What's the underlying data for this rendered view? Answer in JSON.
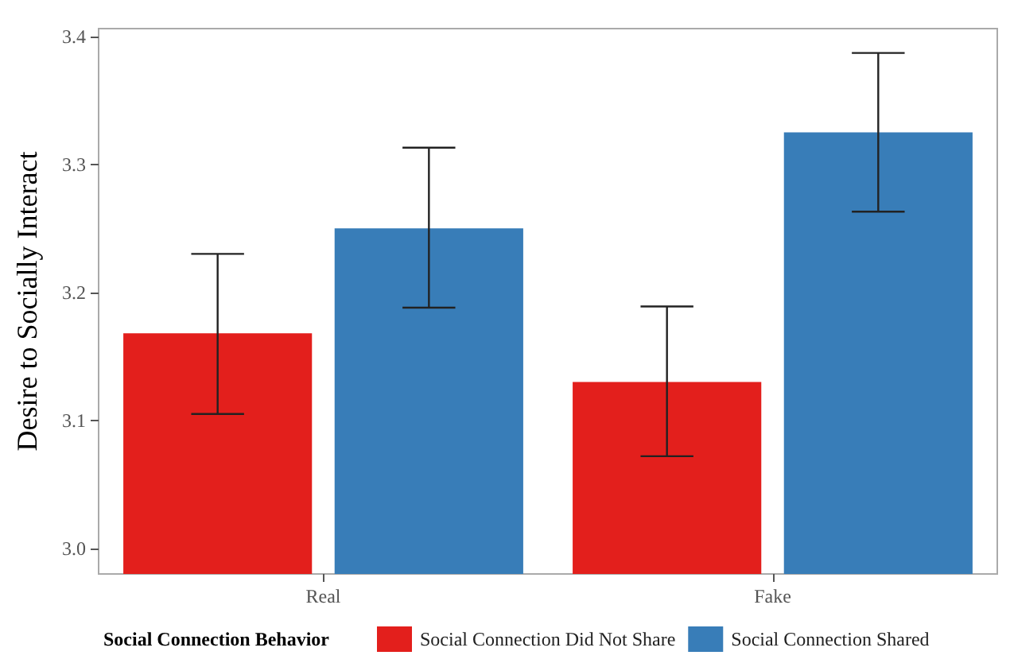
{
  "chart_data": {
    "type": "bar",
    "ylabel": "Desire to Socially Interact",
    "legend_title": "Social Connection Behavior",
    "categories": [
      "Real",
      "Fake"
    ],
    "series": [
      {
        "name": "Social Connection Did Not Share",
        "color": "#e31f1c",
        "values": [
          3.168,
          3.13
        ],
        "errors": [
          [
            3.105,
            3.23
          ],
          [
            3.072,
            3.189
          ]
        ]
      },
      {
        "name": "Social Connection Shared",
        "color": "#387db8",
        "values": [
          3.25,
          3.325
        ],
        "errors": [
          [
            3.188,
            3.313
          ],
          [
            3.263,
            3.387
          ]
        ]
      }
    ],
    "ylim": [
      2.98,
      3.406
    ],
    "yticks": [
      {
        "value": 3.0,
        "label": "3.0"
      },
      {
        "value": 3.1,
        "label": "3.1"
      },
      {
        "value": 3.2,
        "label": "3.2"
      },
      {
        "value": 3.3,
        "label": "3.3"
      },
      {
        "value": 3.4,
        "label": "3.4"
      }
    ],
    "grid": false,
    "legend": "bottom"
  }
}
